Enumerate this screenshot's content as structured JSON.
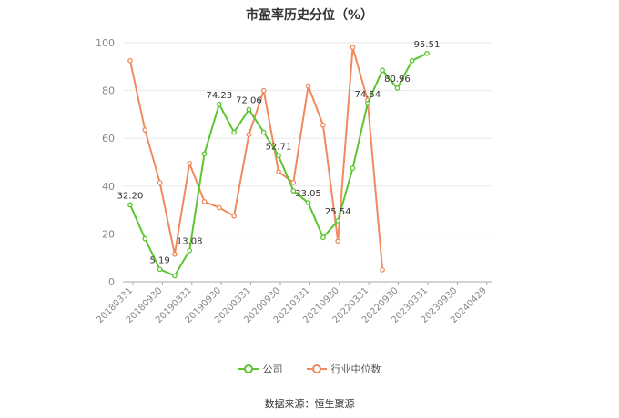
{
  "chart_data": {
    "type": "line",
    "title": "市盈率历史分位（%）",
    "xlabel": "",
    "ylabel": "",
    "ylim": [
      0,
      100
    ],
    "yticks": [
      0,
      20,
      40,
      60,
      80,
      100
    ],
    "xticks": [
      "20180331",
      "20180930",
      "20190331",
      "20190930",
      "20200331",
      "20200930",
      "20210331",
      "20210930",
      "20220331",
      "20220930",
      "20230331",
      "20230930",
      "20240429"
    ],
    "grid": true,
    "legend_position": "bottom",
    "series": [
      {
        "name": "公司",
        "color": "#5cc530",
        "x": [
          0,
          1,
          2,
          3,
          4,
          5,
          6,
          7,
          8,
          9,
          10,
          11,
          12,
          13,
          14,
          15,
          16,
          17,
          18,
          19,
          20
        ],
        "values": [
          32.2,
          18,
          5.19,
          2.5,
          13.08,
          53.5,
          74.23,
          62.5,
          72.06,
          62.5,
          52.71,
          38,
          33.05,
          18.5,
          25.54,
          47.5,
          74.54,
          88.5,
          80.96,
          92.5,
          95.51
        ],
        "labels": {
          "0": "32.20",
          "2": "5.19",
          "4": "13.08",
          "6": "74.23",
          "8": "72.06",
          "10": "52.71",
          "12": "33.05",
          "14": "25.54",
          "16": "74.54",
          "18": "80.96",
          "20": "95.51"
        }
      },
      {
        "name": "行业中位数",
        "color": "#f08a5d",
        "x": [
          0,
          1,
          2,
          3,
          4,
          5,
          6,
          7,
          8,
          9,
          10,
          11,
          12,
          13,
          14,
          15,
          16,
          17
        ],
        "values": [
          92.5,
          63.5,
          41.5,
          11.5,
          49.5,
          33.5,
          31,
          27.5,
          61.5,
          80,
          46,
          41.5,
          82,
          65.5,
          17,
          98,
          76,
          5
        ]
      }
    ]
  },
  "source_text": "数据来源：恒生聚源"
}
